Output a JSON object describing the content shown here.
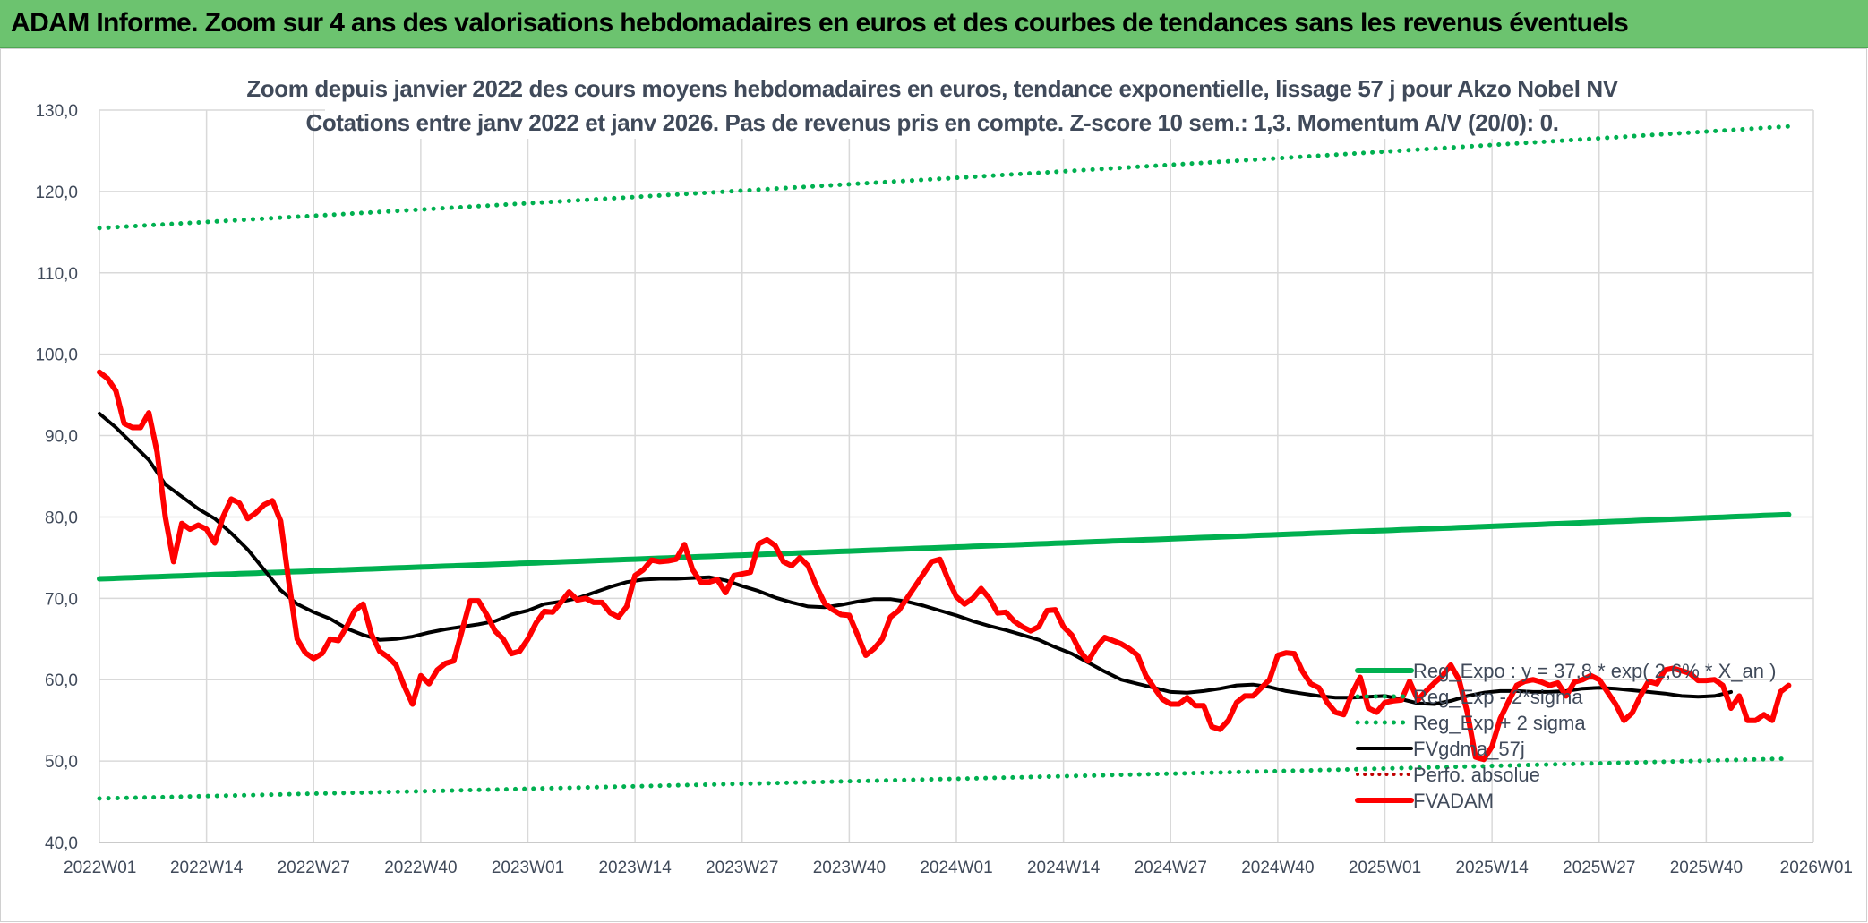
{
  "header": {
    "title": "ADAM Informe. Zoom sur 4 ans des valorisations hebdomadaires en euros et des courbes de tendances sans les revenus éventuels"
  },
  "colors": {
    "header_bg": "#6cc36f",
    "trend": "#00b050",
    "price": "#ff0000",
    "smooth": "#000000",
    "perf": "#c00000"
  },
  "chart_data": {
    "type": "line",
    "title": "Zoom depuis janvier 2022 des cours moyens hebdomadaires en euros, tendance exponentielle, lissage 57 j pour Akzo Nobel NV",
    "subtitle": "Cotations entre janv 2022 et janv 2026. Pas de revenus pris en compte. Z-score 10 sem.: 1,3. Momentum A/V (20/0): 0.",
    "xlabel": "",
    "ylabel": "",
    "ylim": [
      40,
      130
    ],
    "yticks": [
      "40,0",
      "50,0",
      "60,0",
      "70,0",
      "80,0",
      "90,0",
      "100,0",
      "110,0",
      "120,0",
      "130,0"
    ],
    "categories": [
      "2022W01",
      "2022W14",
      "2022W27",
      "2022W40",
      "2023W01",
      "2023W14",
      "2023W27",
      "2023W40",
      "2024W01",
      "2024W14",
      "2024W27",
      "2024W40",
      "2025W01",
      "2025W14",
      "2025W27",
      "2025W40",
      "2026W01"
    ],
    "grid": true,
    "legend_position": "bottom-right",
    "series": [
      {
        "name": "Reg_Expo : y = 37,8 * exp( 2,6% *  X_an )",
        "style": "solid-green",
        "start": 72.4,
        "end": 80.3
      },
      {
        "name": "Reg_Exp - 2*sigma",
        "style": "dotted-green",
        "start": 45.4,
        "end": 50.3
      },
      {
        "name": "Reg_Exp + 2 sigma",
        "style": "dotted-green",
        "start": 115.5,
        "end": 128.0
      },
      {
        "name": "FVgdma_57j",
        "style": "solid-black",
        "points": [
          [
            0,
            92.7
          ],
          [
            2,
            91
          ],
          [
            4,
            89
          ],
          [
            6,
            87
          ],
          [
            8,
            84
          ],
          [
            10,
            82.5
          ],
          [
            12,
            81
          ],
          [
            14,
            79.8
          ],
          [
            16,
            78
          ],
          [
            18,
            76
          ],
          [
            20,
            73.5
          ],
          [
            22,
            71
          ],
          [
            24,
            69.3
          ],
          [
            26,
            68.3
          ],
          [
            28,
            67.5
          ],
          [
            30,
            66.3
          ],
          [
            32,
            65.5
          ],
          [
            34,
            64.9
          ],
          [
            36,
            65
          ],
          [
            38,
            65.3
          ],
          [
            40,
            65.8
          ],
          [
            42,
            66.2
          ],
          [
            44,
            66.5
          ],
          [
            46,
            66.8
          ],
          [
            48,
            67.2
          ],
          [
            50,
            68
          ],
          [
            52,
            68.5
          ],
          [
            54,
            69.3
          ],
          [
            56,
            69.6
          ],
          [
            58,
            70
          ],
          [
            60,
            70.7
          ],
          [
            62,
            71.4
          ],
          [
            64,
            72
          ],
          [
            66,
            72.3
          ],
          [
            68,
            72.4
          ],
          [
            70,
            72.4
          ],
          [
            72,
            72.5
          ],
          [
            74,
            72.6
          ],
          [
            76,
            72.2
          ],
          [
            78,
            71.5
          ],
          [
            80,
            70.9
          ],
          [
            82,
            70.1
          ],
          [
            84,
            69.5
          ],
          [
            86,
            69
          ],
          [
            88,
            68.9
          ],
          [
            90,
            69.2
          ],
          [
            92,
            69.6
          ],
          [
            94,
            69.9
          ],
          [
            96,
            69.9
          ],
          [
            98,
            69.6
          ],
          [
            100,
            69.1
          ],
          [
            102,
            68.5
          ],
          [
            104,
            67.9
          ],
          [
            106,
            67.2
          ],
          [
            108,
            66.6
          ],
          [
            110,
            66.1
          ],
          [
            112,
            65.5
          ],
          [
            114,
            64.9
          ],
          [
            116,
            64
          ],
          [
            118,
            63.2
          ],
          [
            120,
            62.1
          ],
          [
            122,
            61
          ],
          [
            124,
            60
          ],
          [
            126,
            59.5
          ],
          [
            128,
            59
          ],
          [
            130,
            58.5
          ],
          [
            132,
            58.4
          ],
          [
            134,
            58.6
          ],
          [
            136,
            58.9
          ],
          [
            138,
            59.3
          ],
          [
            140,
            59.4
          ],
          [
            142,
            59.1
          ],
          [
            144,
            58.6
          ],
          [
            146,
            58.3
          ],
          [
            148,
            58
          ],
          [
            150,
            57.8
          ],
          [
            152,
            57.8
          ],
          [
            154,
            57.9
          ],
          [
            156,
            58
          ],
          [
            158,
            57.6
          ],
          [
            160,
            57.1
          ],
          [
            162,
            57
          ],
          [
            164,
            57.4
          ],
          [
            166,
            58
          ],
          [
            168,
            58.4
          ],
          [
            170,
            58.6
          ],
          [
            172,
            58.6
          ],
          [
            174,
            58.5
          ],
          [
            176,
            58.5
          ],
          [
            178,
            58.6
          ],
          [
            180,
            58.9
          ],
          [
            182,
            59
          ],
          [
            184,
            58.9
          ],
          [
            186,
            58.7
          ],
          [
            188,
            58.5
          ],
          [
            190,
            58.3
          ],
          [
            192,
            58
          ],
          [
            194,
            57.9
          ],
          [
            196,
            58
          ],
          [
            198,
            58.5
          ]
        ]
      },
      {
        "name": "Perfo. absolue",
        "style": "dotted-darkred"
      },
      {
        "name": "FVADAM",
        "style": "solid-red",
        "points": [
          [
            0,
            97.8
          ],
          [
            1,
            97
          ],
          [
            2,
            95.5
          ],
          [
            3,
            91.5
          ],
          [
            4,
            91
          ],
          [
            5,
            91
          ],
          [
            6,
            92.8
          ],
          [
            7,
            88
          ],
          [
            8,
            80
          ],
          [
            9,
            74.5
          ],
          [
            10,
            79.2
          ],
          [
            11,
            78.5
          ],
          [
            12,
            79
          ],
          [
            13,
            78.5
          ],
          [
            14,
            76.8
          ],
          [
            15,
            80
          ],
          [
            16,
            82.2
          ],
          [
            17,
            81.7
          ],
          [
            18,
            79.8
          ],
          [
            19,
            80.5
          ],
          [
            20,
            81.5
          ],
          [
            21,
            82
          ],
          [
            22,
            79.5
          ],
          [
            23,
            72
          ],
          [
            24,
            65
          ],
          [
            25,
            63.3
          ],
          [
            26,
            62.6
          ],
          [
            27,
            63.2
          ],
          [
            28,
            65
          ],
          [
            29,
            64.8
          ],
          [
            30,
            66.5
          ],
          [
            31,
            68.5
          ],
          [
            32,
            69.3
          ],
          [
            33,
            65.6
          ],
          [
            34,
            63.5
          ],
          [
            35,
            62.8
          ],
          [
            36,
            61.8
          ],
          [
            37,
            59.2
          ],
          [
            38,
            57
          ],
          [
            39,
            60.5
          ],
          [
            40,
            59.5
          ],
          [
            41,
            61.2
          ],
          [
            42,
            62
          ],
          [
            43,
            62.3
          ],
          [
            44,
            66
          ],
          [
            45,
            69.7
          ],
          [
            46,
            69.7
          ],
          [
            47,
            68
          ],
          [
            48,
            66
          ],
          [
            49,
            65
          ],
          [
            50,
            63.2
          ],
          [
            51,
            63.5
          ],
          [
            52,
            65
          ],
          [
            53,
            67
          ],
          [
            54,
            68.4
          ],
          [
            55,
            68.3
          ],
          [
            56,
            69.5
          ],
          [
            57,
            70.8
          ],
          [
            58,
            69.8
          ],
          [
            59,
            70
          ],
          [
            60,
            69.5
          ],
          [
            61,
            69.5
          ],
          [
            62,
            68.2
          ],
          [
            63,
            67.7
          ],
          [
            64,
            69
          ],
          [
            65,
            72.8
          ],
          [
            66,
            73.5
          ],
          [
            67,
            74.7
          ],
          [
            68,
            74.5
          ],
          [
            69,
            74.6
          ],
          [
            70,
            74.8
          ],
          [
            71,
            76.6
          ],
          [
            72,
            73.5
          ],
          [
            73,
            72
          ],
          [
            74,
            72
          ],
          [
            75,
            72.3
          ],
          [
            76,
            70.7
          ],
          [
            77,
            72.8
          ],
          [
            78,
            73
          ],
          [
            79,
            73.2
          ],
          [
            80,
            76.7
          ],
          [
            81,
            77.2
          ],
          [
            82,
            76.5
          ],
          [
            83,
            74.5
          ],
          [
            84,
            74
          ],
          [
            85,
            75
          ],
          [
            86,
            74
          ],
          [
            87,
            71.5
          ],
          [
            88,
            69.4
          ],
          [
            89,
            68.6
          ],
          [
            90,
            68
          ],
          [
            91,
            67.9
          ],
          [
            92,
            65.5
          ],
          [
            93,
            63
          ],
          [
            94,
            63.8
          ],
          [
            95,
            65
          ],
          [
            96,
            67.7
          ],
          [
            97,
            68.5
          ],
          [
            98,
            70
          ],
          [
            99,
            71.5
          ],
          [
            100,
            73
          ],
          [
            101,
            74.5
          ],
          [
            102,
            74.8
          ],
          [
            103,
            72.3
          ],
          [
            104,
            70.2
          ],
          [
            105,
            69.3
          ],
          [
            106,
            70
          ],
          [
            107,
            71.2
          ],
          [
            108,
            70
          ],
          [
            109,
            68.2
          ],
          [
            110,
            68.3
          ],
          [
            111,
            67.2
          ],
          [
            112,
            66.5
          ],
          [
            113,
            66
          ],
          [
            114,
            66.5
          ],
          [
            115,
            68.5
          ],
          [
            116,
            68.6
          ],
          [
            117,
            66.5
          ],
          [
            118,
            65.5
          ],
          [
            119,
            63.5
          ],
          [
            120,
            62.3
          ],
          [
            121,
            64
          ],
          [
            122,
            65.2
          ],
          [
            123,
            64.8
          ],
          [
            124,
            64.4
          ],
          [
            125,
            63.8
          ],
          [
            126,
            63
          ],
          [
            127,
            60.5
          ],
          [
            128,
            59
          ],
          [
            129,
            57.6
          ],
          [
            130,
            57
          ],
          [
            131,
            57
          ],
          [
            132,
            57.8
          ],
          [
            133,
            56.8
          ],
          [
            134,
            56.8
          ],
          [
            135,
            54.2
          ],
          [
            136,
            53.9
          ],
          [
            137,
            55
          ],
          [
            138,
            57.2
          ],
          [
            139,
            58
          ],
          [
            140,
            58
          ],
          [
            141,
            59
          ],
          [
            142,
            60
          ],
          [
            143,
            63
          ],
          [
            144,
            63.3
          ],
          [
            145,
            63.2
          ],
          [
            146,
            61
          ],
          [
            147,
            59.5
          ],
          [
            148,
            59
          ],
          [
            149,
            57.2
          ],
          [
            150,
            56
          ],
          [
            151,
            55.7
          ],
          [
            152,
            58.3
          ],
          [
            153,
            60.3
          ],
          [
            154,
            56.5
          ],
          [
            155,
            56
          ],
          [
            156,
            57.2
          ],
          [
            157,
            57.4
          ],
          [
            158,
            57.5
          ],
          [
            159,
            59.8
          ],
          [
            160,
            57.5
          ],
          [
            161,
            58.6
          ],
          [
            162,
            59.6
          ],
          [
            163,
            60.5
          ],
          [
            164,
            61.8
          ],
          [
            165,
            60
          ],
          [
            166,
            56
          ],
          [
            167,
            50.5
          ],
          [
            168,
            50.2
          ],
          [
            169,
            51.8
          ],
          [
            170,
            55.2
          ],
          [
            171,
            57.3
          ],
          [
            172,
            59.3
          ],
          [
            173,
            59.8
          ],
          [
            174,
            60
          ],
          [
            175,
            59.7
          ],
          [
            176,
            59.3
          ],
          [
            177,
            59.6
          ],
          [
            178,
            58
          ],
          [
            179,
            59.7
          ],
          [
            180,
            60
          ],
          [
            181,
            60.5
          ],
          [
            182,
            60
          ],
          [
            183,
            58.5
          ],
          [
            184,
            57
          ],
          [
            185,
            55
          ],
          [
            186,
            55.9
          ],
          [
            187,
            58
          ],
          [
            188,
            59.8
          ],
          [
            189,
            59.5
          ],
          [
            190,
            61.2
          ],
          [
            191,
            61.4
          ],
          [
            192,
            61.1
          ],
          [
            193,
            60.8
          ],
          [
            194,
            59.9
          ],
          [
            195,
            59.9
          ],
          [
            196,
            60
          ],
          [
            197,
            59.3
          ],
          [
            198,
            56.5
          ],
          [
            199,
            58
          ],
          [
            200,
            55
          ],
          [
            201,
            55
          ],
          [
            202,
            55.7
          ],
          [
            203,
            55
          ],
          [
            204,
            58.5
          ],
          [
            205,
            59.3
          ]
        ]
      }
    ]
  }
}
